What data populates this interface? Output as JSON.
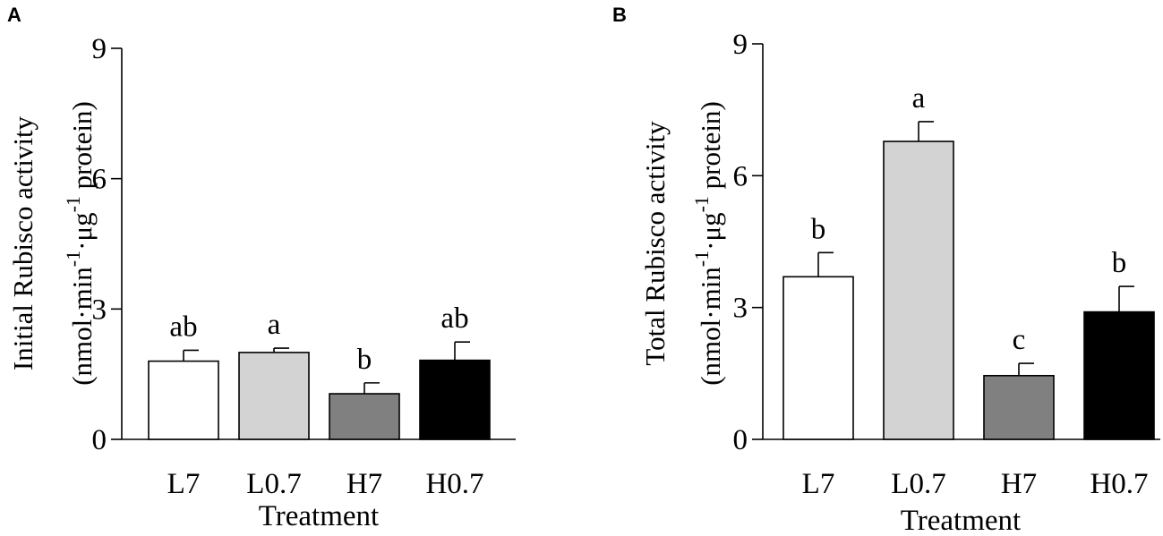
{
  "chart_data": [
    {
      "panel_label": "A",
      "type": "bar",
      "categories": [
        "L7",
        "L0.7",
        "H7",
        "H0.7"
      ],
      "values": [
        1.8,
        2.0,
        1.05,
        1.82
      ],
      "errors": [
        0.25,
        0.1,
        0.25,
        0.42
      ],
      "letters": [
        "ab",
        "a",
        "b",
        "ab"
      ],
      "colors": [
        "#ffffff",
        "#d3d3d3",
        "#808080",
        "#000000"
      ],
      "ylabel_line1": "Initial Rubisco activity",
      "ylabel_line2": {
        "a": "(nmol·min",
        "s1": "-1",
        "b": "·μg",
        "s2": "-1",
        "c": " protein)"
      },
      "xlabel": "Treatment",
      "yticks": [
        "0",
        "3",
        "6",
        "9"
      ],
      "ylim": [
        0,
        9
      ],
      "grid": false
    },
    {
      "panel_label": "B",
      "type": "bar",
      "categories": [
        "L7",
        "L0.7",
        "H7",
        "H0.7"
      ],
      "values": [
        3.7,
        6.78,
        1.45,
        2.9
      ],
      "errors": [
        0.55,
        0.45,
        0.28,
        0.58
      ],
      "letters": [
        "b",
        "a",
        "c",
        "b"
      ],
      "colors": [
        "#ffffff",
        "#d3d3d3",
        "#808080",
        "#000000"
      ],
      "ylabel_line1": "Total Rubisco activity",
      "ylabel_line2": {
        "a": "(nmol·min",
        "s1": "-1",
        "b": "·μg",
        "s2": "-1",
        "c": " protein)"
      },
      "xlabel": "Treatment",
      "yticks": [
        "0",
        "3",
        "6",
        "9"
      ],
      "ylim": [
        0,
        9
      ],
      "grid": false
    }
  ]
}
